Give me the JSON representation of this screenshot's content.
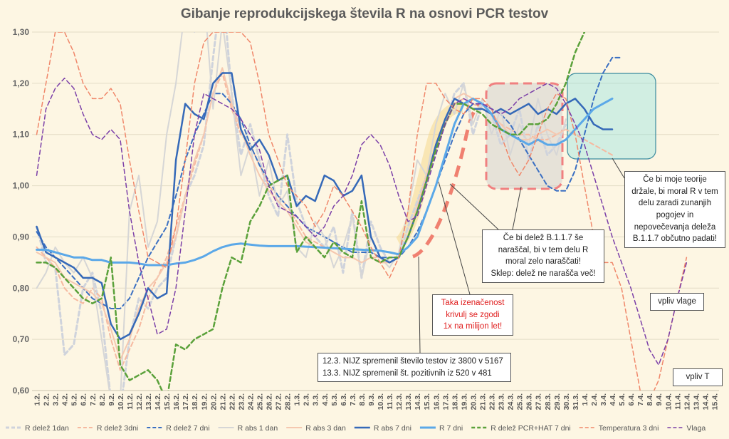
{
  "chart_data": {
    "type": "line",
    "title": "Gibanje reprodukcijskega števila R na osnovi PCR testov",
    "ylim": [
      0.6,
      1.3
    ],
    "yticks": [
      "0,60",
      "0,70",
      "0,80",
      "0,90",
      "1,00",
      "1,10",
      "1,20",
      "1,30"
    ],
    "categories": [
      "1.2.",
      "2.2.",
      "3.2.",
      "4.2.",
      "5.2.",
      "6.2.",
      "7.2.",
      "8.2.",
      "9.2.",
      "10.2.",
      "11.2.",
      "12.2.",
      "13.2.",
      "14.2.",
      "15.2.",
      "16.2.",
      "17.2.",
      "18.2.",
      "19.2.",
      "20.2.",
      "21.2.",
      "22.2.",
      "23.2.",
      "24.2.",
      "25.2.",
      "26.2.",
      "27.2.",
      "28.2.",
      "1.3.",
      "2.3.",
      "3.3.",
      "4.3.",
      "5.3.",
      "6.3.",
      "7.3.",
      "8.3.",
      "9.3.",
      "10.3.",
      "11.3.",
      "12.3.",
      "13.3.",
      "14.3.",
      "15.3.",
      "16.3.",
      "17.3.",
      "18.3.",
      "19.3.",
      "20.3.",
      "21.3.",
      "22.3.",
      "23.3.",
      "24.3.",
      "25.3.",
      "26.3.",
      "27.3.",
      "28.3.",
      "29.3.",
      "30.3.",
      "31.3.",
      "1.4.",
      "2.4.",
      "3.4.",
      "4.4.",
      "5.4.",
      "6.4.",
      "7.4.",
      "8.4.",
      "9.4.",
      "10.4.",
      "11.4.",
      "12.4.",
      "13.4.",
      "14.4.",
      "15.4."
    ],
    "series": [
      {
        "name": "R delež 1dan",
        "color": "#cfd3dc",
        "dash": "dash",
        "width": 3,
        "values": [
          0.92,
          0.85,
          0.84,
          0.67,
          0.69,
          0.8,
          0.83,
          0.75,
          0.58,
          0.56,
          0.7,
          0.78,
          0.76,
          0.8,
          0.82,
          0.9,
          0.98,
          1.02,
          1.08,
          1.25,
          1.4,
          1.18,
          1.06,
          1.12,
          1.05,
          0.98,
          0.94,
          1.1,
          0.97,
          0.92,
          0.9,
          0.88,
          0.92,
          0.83,
          0.95,
          0.82,
          0.93,
          0.88,
          0.85,
          0.86,
          0.92,
          0.97,
          1.02,
          1.08,
          1.12,
          1.18,
          1.2,
          1.1,
          1.16,
          1.14,
          1.08,
          1.1,
          1.15,
          1.05,
          1.12,
          1.06,
          1.08,
          1.12,
          null,
          null,
          null,
          null,
          null,
          null,
          null,
          null,
          null,
          null,
          null,
          null,
          null,
          null,
          null,
          null
        ]
      },
      {
        "name": "R delež 3dni",
        "color": "#f6b9a0",
        "dash": "dash",
        "width": 2,
        "values": [
          0.88,
          0.86,
          0.84,
          0.8,
          0.78,
          0.77,
          0.8,
          0.78,
          0.7,
          0.64,
          0.68,
          0.72,
          0.78,
          0.82,
          0.86,
          0.92,
          0.98,
          1.04,
          1.1,
          1.18,
          1.22,
          1.15,
          1.1,
          1.08,
          1.04,
          1.0,
          0.98,
          0.96,
          0.93,
          0.9,
          0.89,
          0.88,
          0.87,
          0.86,
          0.86,
          0.85,
          0.86,
          0.86,
          0.85,
          0.86,
          0.9,
          0.95,
          1.01,
          1.07,
          1.12,
          1.16,
          1.17,
          1.16,
          1.15,
          1.14,
          1.12,
          1.11,
          1.1,
          1.1,
          1.09,
          1.09,
          1.1,
          1.11,
          1.1,
          1.09,
          1.08,
          1.07,
          1.06,
          null,
          null,
          null,
          null,
          null,
          null,
          null,
          null,
          null,
          null,
          null
        ]
      },
      {
        "name": "R delež 7 dni",
        "color": "#3a6fc2",
        "dash": "dash",
        "width": 2,
        "values": [
          0.91,
          0.88,
          0.86,
          0.84,
          0.82,
          0.8,
          0.78,
          0.77,
          0.76,
          0.76,
          0.78,
          0.82,
          0.86,
          0.89,
          0.92,
          0.98,
          1.05,
          1.1,
          1.14,
          1.18,
          1.18,
          1.16,
          1.13,
          1.08,
          1.04,
          1.01,
          0.98,
          0.96,
          0.94,
          0.92,
          0.91,
          0.9,
          0.89,
          0.88,
          0.87,
          0.87,
          0.87,
          0.86,
          0.86,
          0.86,
          0.88,
          0.91,
          0.95,
          1.0,
          1.05,
          1.1,
          1.14,
          1.16,
          1.16,
          1.15,
          1.14,
          1.12,
          1.09,
          1.06,
          1.03,
          1.0,
          0.99,
          0.99,
          1.03,
          1.1,
          1.17,
          1.22,
          1.25,
          1.25,
          null,
          null,
          null,
          null,
          null,
          null,
          null,
          null,
          null,
          null
        ]
      },
      {
        "name": "R abs 1 dan",
        "color": "#d6d6d6",
        "dash": "solid",
        "width": 2,
        "values": [
          0.8,
          0.83,
          0.88,
          0.85,
          0.83,
          0.86,
          0.82,
          0.7,
          0.58,
          0.58,
          0.95,
          1.02,
          0.88,
          0.93,
          1.1,
          1.2,
          1.35,
          1.3,
          1.38,
          1.15,
          1.32,
          1.18,
          1.02,
          1.08,
          0.98,
          1.05,
          0.96,
          0.99,
          0.88,
          0.86,
          0.93,
          0.9,
          0.84,
          0.88,
          0.94,
          0.82,
          0.9,
          0.86,
          0.84,
          0.87,
          0.95,
          1.05,
          1.02,
          1.12,
          1.18,
          1.14,
          1.2,
          1.12,
          1.17,
          1.1,
          1.15,
          1.06,
          1.12,
          1.08,
          1.17,
          1.1,
          1.06,
          1.13,
          null,
          null,
          null,
          null,
          null,
          null,
          null,
          null,
          null,
          null,
          null,
          null,
          null,
          null,
          null,
          null
        ]
      },
      {
        "name": "R abs 3 dan",
        "color": "#f5c8b0",
        "dash": "solid",
        "width": 2,
        "values": [
          0.87,
          0.86,
          0.85,
          0.82,
          0.81,
          0.8,
          0.79,
          0.77,
          0.72,
          0.66,
          0.7,
          0.76,
          0.8,
          0.82,
          0.85,
          0.9,
          0.98,
          1.05,
          1.1,
          1.18,
          1.23,
          1.16,
          1.11,
          1.06,
          1.02,
          0.99,
          0.97,
          0.95,
          0.92,
          0.89,
          0.88,
          0.88,
          0.87,
          0.86,
          0.86,
          0.85,
          0.86,
          0.85,
          0.85,
          0.86,
          0.9,
          0.96,
          1.02,
          1.08,
          1.13,
          1.17,
          1.18,
          1.17,
          1.16,
          1.14,
          1.12,
          1.1,
          1.09,
          1.09,
          1.1,
          1.11,
          1.1,
          1.11,
          null,
          null,
          null,
          null,
          null,
          null,
          null,
          null,
          null,
          null,
          null,
          null,
          null,
          null,
          null,
          null
        ]
      },
      {
        "name": "R abs 7 dni",
        "color": "#3569b8",
        "dash": "solid",
        "width": 2.5,
        "values": [
          0.92,
          0.87,
          0.86,
          0.85,
          0.84,
          0.82,
          0.82,
          0.81,
          0.73,
          0.7,
          0.71,
          0.75,
          0.8,
          0.78,
          0.79,
          1.05,
          1.16,
          1.14,
          1.13,
          1.2,
          1.22,
          1.22,
          1.11,
          1.07,
          1.09,
          1.06,
          1.01,
          1.02,
          0.96,
          0.98,
          0.97,
          1.02,
          1.01,
          0.98,
          0.99,
          1.02,
          0.9,
          0.86,
          0.85,
          0.86,
          0.9,
          0.95,
          1.01,
          1.08,
          1.13,
          1.17,
          1.16,
          1.15,
          1.15,
          1.14,
          1.15,
          1.14,
          1.15,
          1.16,
          1.14,
          1.15,
          1.14,
          1.16,
          1.17,
          1.15,
          1.12,
          1.11,
          1.11,
          null,
          null,
          null,
          null,
          null,
          null,
          null,
          null,
          null,
          null,
          null
        ]
      },
      {
        "name": "R 7 dni",
        "color": "#5ba8e8",
        "dash": "solid",
        "width": 3,
        "values": [
          0.875,
          0.875,
          0.87,
          0.865,
          0.86,
          0.86,
          0.855,
          0.855,
          0.85,
          0.85,
          0.85,
          0.848,
          0.845,
          0.845,
          0.845,
          0.848,
          0.85,
          0.855,
          0.862,
          0.872,
          0.88,
          0.885,
          0.887,
          0.885,
          0.883,
          0.882,
          0.882,
          0.882,
          0.882,
          0.881,
          0.88,
          0.879,
          0.878,
          0.877,
          0.876,
          0.875,
          0.874,
          0.873,
          0.87,
          0.866,
          0.88,
          0.9,
          0.95,
          1.0,
          1.06,
          1.12,
          1.16,
          1.17,
          1.16,
          1.14,
          1.11,
          1.1,
          1.09,
          1.08,
          1.09,
          1.08,
          1.08,
          1.09,
          1.11,
          1.13,
          1.15,
          1.16,
          1.17,
          null,
          null,
          null,
          null,
          null,
          null,
          null,
          null,
          null,
          null,
          null
        ]
      },
      {
        "name": "R delež PCR+HAT 7 dni",
        "color": "#5aa13a",
        "dash": "dash",
        "width": 2.5,
        "values": [
          0.85,
          0.85,
          0.84,
          0.82,
          0.8,
          0.78,
          0.77,
          0.78,
          0.86,
          0.65,
          0.62,
          0.63,
          0.64,
          0.62,
          0.58,
          0.69,
          0.68,
          0.7,
          0.71,
          0.72,
          0.8,
          0.86,
          0.85,
          0.93,
          0.96,
          1.0,
          1.01,
          1.02,
          0.87,
          0.9,
          0.88,
          0.86,
          0.89,
          0.87,
          0.86,
          0.97,
          0.86,
          0.85,
          0.86,
          0.86,
          0.9,
          0.95,
          1.01,
          1.07,
          1.12,
          1.16,
          1.16,
          1.15,
          1.14,
          1.12,
          1.11,
          1.1,
          1.1,
          1.12,
          1.12,
          1.13,
          1.16,
          1.2,
          1.26,
          1.3,
          null,
          null,
          null,
          null,
          null,
          null,
          null,
          null,
          null,
          null,
          null,
          null,
          null,
          null
        ]
      },
      {
        "name": "Temperatura 3 dni",
        "color": "#f0876a",
        "dash": "dash",
        "width": 1.5,
        "values": [
          1.1,
          1.2,
          1.3,
          1.3,
          1.26,
          1.2,
          1.17,
          1.17,
          1.19,
          1.16,
          1.05,
          0.95,
          0.86,
          0.85,
          0.84,
          0.92,
          1.05,
          1.2,
          1.28,
          1.3,
          1.3,
          1.3,
          1.3,
          1.28,
          1.2,
          1.1,
          1.05,
          1.0,
          0.98,
          0.96,
          0.92,
          0.95,
          1.0,
          0.98,
          0.95,
          0.92,
          0.88,
          0.85,
          0.82,
          0.86,
          0.95,
          1.1,
          1.2,
          1.2,
          1.17,
          1.15,
          1.14,
          1.17,
          1.17,
          1.15,
          1.1,
          1.05,
          1.02,
          1.05,
          1.1,
          1.15,
          1.18,
          1.17,
          1.1,
          1.0,
          0.9,
          0.85,
          0.85,
          0.8,
          0.7,
          0.6,
          0.58,
          0.62,
          0.7,
          0.78,
          0.86,
          null,
          null,
          null
        ]
      },
      {
        "name": "Vlaga",
        "color": "#7b3fa8",
        "dash": "dash",
        "width": 1.5,
        "values": [
          1.02,
          1.15,
          1.19,
          1.21,
          1.19,
          1.14,
          1.1,
          1.09,
          1.11,
          1.09,
          0.95,
          0.85,
          0.78,
          0.71,
          0.72,
          0.8,
          0.95,
          1.1,
          1.18,
          1.17,
          1.16,
          1.15,
          1.13,
          1.1,
          1.07,
          1.0,
          0.96,
          0.95,
          0.94,
          0.92,
          0.9,
          0.92,
          0.96,
          0.98,
          1.02,
          1.08,
          1.1,
          1.08,
          1.04,
          0.98,
          0.93,
          0.94,
          1.0,
          1.06,
          1.12,
          1.16,
          1.17,
          1.16,
          1.16,
          1.15,
          1.14,
          1.15,
          1.17,
          1.18,
          1.19,
          1.2,
          1.19,
          1.16,
          1.12,
          1.08,
          1.02,
          0.96,
          0.9,
          0.85,
          0.8,
          0.74,
          0.68,
          0.65,
          0.7,
          0.78,
          0.85,
          null,
          null,
          null
        ]
      }
    ],
    "annotations": {
      "hypothesis": [
        "Če bi moje teorije",
        "držale, bi moral R v tem",
        "delu zaradi zunanjih",
        "pogojev in",
        "nepovečevanja deleža",
        "B.1.1.7 občutno padati!"
      ],
      "bshare": [
        "Če bi delež B.1.1.7 še",
        "naraščal, bi v tem delu R",
        "moral zelo naraščati!",
        "Sklep: delež ne narašča več!"
      ],
      "coincidence": [
        "Taka izenačenost",
        "krivulj se zgodi",
        "1x na milijon let!"
      ],
      "nijz": [
        "12.3. NIJZ spremenil število testov iz 3800 v 5167",
        "13.3. NIJZ spremenil št. pozitivnih iz 520 v 481"
      ],
      "humidity": "vpliv vlage",
      "temperature": "vpliv T"
    },
    "grid": true,
    "legend_position": "bottom"
  }
}
